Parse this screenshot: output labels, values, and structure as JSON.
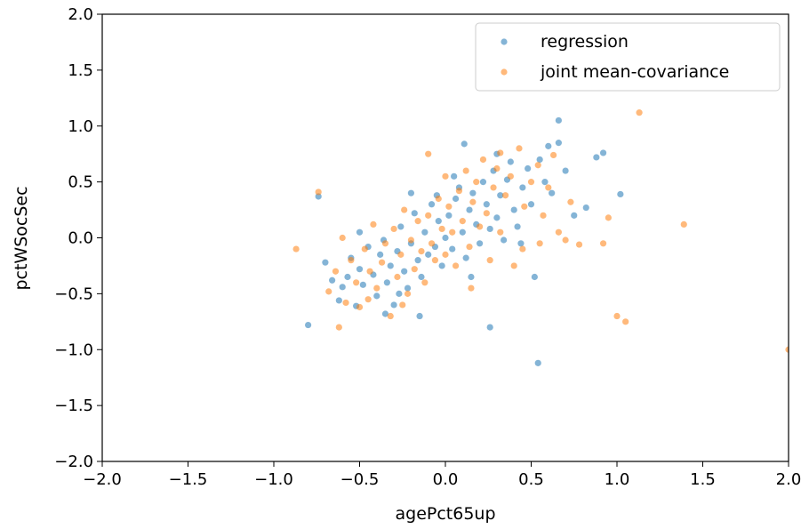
{
  "chart_data": {
    "type": "scatter",
    "xlabel": "agePct65up",
    "ylabel": "pctWSocSec",
    "xlim": [
      -2.0,
      2.0
    ],
    "ylim": [
      -2.0,
      2.0
    ],
    "x_ticks": [
      "−2.0",
      "−1.5",
      "−1.0",
      "−0.5",
      "0.0",
      "0.5",
      "1.0",
      "1.5",
      "2.0"
    ],
    "y_ticks": [
      "−2.0",
      "−1.5",
      "−1.0",
      "−0.5",
      "0.0",
      "0.5",
      "1.0",
      "1.5",
      "2.0"
    ],
    "grid": false,
    "legend_position": "top-right",
    "series": [
      {
        "name": "regression",
        "color": "#1f77b4",
        "points": [
          [
            -0.8,
            -0.78
          ],
          [
            -0.74,
            0.37
          ],
          [
            -0.7,
            -0.22
          ],
          [
            -0.66,
            -0.38
          ],
          [
            -0.62,
            -0.56
          ],
          [
            -0.6,
            -0.44
          ],
          [
            -0.57,
            -0.35
          ],
          [
            -0.55,
            -0.18
          ],
          [
            -0.52,
            -0.61
          ],
          [
            -0.5,
            -0.28
          ],
          [
            -0.48,
            -0.42
          ],
          [
            -0.45,
            -0.08
          ],
          [
            -0.42,
            -0.33
          ],
          [
            -0.4,
            -0.52
          ],
          [
            -0.38,
            -0.15
          ],
          [
            -0.36,
            -0.02
          ],
          [
            -0.34,
            -0.4
          ],
          [
            -0.32,
            -0.25
          ],
          [
            -0.3,
            -0.6
          ],
          [
            -0.28,
            -0.12
          ],
          [
            -0.26,
            0.1
          ],
          [
            -0.24,
            -0.3
          ],
          [
            -0.22,
            -0.45
          ],
          [
            -0.2,
            -0.05
          ],
          [
            -0.18,
            0.22
          ],
          [
            -0.16,
            -0.2
          ],
          [
            -0.14,
            -0.35
          ],
          [
            -0.12,
            0.05
          ],
          [
            -0.1,
            -0.15
          ],
          [
            -0.08,
            0.3
          ],
          [
            -0.06,
            -0.08
          ],
          [
            -0.04,
            0.15
          ],
          [
            -0.02,
            -0.25
          ],
          [
            0.0,
            0.0
          ],
          [
            0.02,
            0.2
          ],
          [
            0.04,
            -0.1
          ],
          [
            0.06,
            0.35
          ],
          [
            0.08,
            0.45
          ],
          [
            0.1,
            0.05
          ],
          [
            0.12,
            -0.18
          ],
          [
            0.14,
            0.25
          ],
          [
            0.16,
            0.4
          ],
          [
            0.18,
            0.12
          ],
          [
            0.2,
            -0.05
          ],
          [
            0.22,
            0.5
          ],
          [
            0.24,
            0.3
          ],
          [
            0.26,
            0.08
          ],
          [
            0.28,
            0.6
          ],
          [
            0.3,
            0.18
          ],
          [
            0.32,
            0.38
          ],
          [
            0.34,
            -0.02
          ],
          [
            0.36,
            0.52
          ],
          [
            0.38,
            0.68
          ],
          [
            0.4,
            0.25
          ],
          [
            0.42,
            0.1
          ],
          [
            0.45,
            0.45
          ],
          [
            0.48,
            0.62
          ],
          [
            0.5,
            0.3
          ],
          [
            0.52,
            -0.35
          ],
          [
            0.55,
            0.7
          ],
          [
            0.58,
            0.5
          ],
          [
            0.6,
            0.82
          ],
          [
            0.62,
            0.4
          ],
          [
            0.66,
            1.05
          ],
          [
            0.66,
            0.85
          ],
          [
            0.7,
            0.6
          ],
          [
            0.75,
            0.2
          ],
          [
            0.82,
            0.27
          ],
          [
            0.88,
            0.72
          ],
          [
            0.92,
            0.76
          ],
          [
            1.02,
            0.39
          ],
          [
            0.54,
            -1.12
          ],
          [
            0.26,
            -0.8
          ],
          [
            0.11,
            0.84
          ],
          [
            -0.15,
            -0.7
          ],
          [
            -0.35,
            -0.68
          ],
          [
            -0.2,
            0.4
          ],
          [
            0.3,
            0.75
          ],
          [
            -0.5,
            0.05
          ],
          [
            -0.05,
            0.38
          ],
          [
            0.15,
            -0.35
          ],
          [
            0.44,
            -0.05
          ],
          [
            -0.27,
            -0.5
          ],
          [
            0.05,
            0.55
          ]
        ]
      },
      {
        "name": "joint mean-covariance",
        "color": "#ff7f0e",
        "points": [
          [
            -0.87,
            -0.1
          ],
          [
            -0.74,
            0.41
          ],
          [
            -0.68,
            -0.48
          ],
          [
            -0.64,
            -0.3
          ],
          [
            -0.62,
            -0.8
          ],
          [
            -0.58,
            -0.58
          ],
          [
            -0.55,
            -0.2
          ],
          [
            -0.52,
            -0.4
          ],
          [
            -0.5,
            -0.62
          ],
          [
            -0.47,
            -0.1
          ],
          [
            -0.44,
            -0.3
          ],
          [
            -0.42,
            0.12
          ],
          [
            -0.4,
            -0.45
          ],
          [
            -0.37,
            -0.22
          ],
          [
            -0.35,
            -0.05
          ],
          [
            -0.32,
            -0.7
          ],
          [
            -0.3,
            0.08
          ],
          [
            -0.28,
            -0.35
          ],
          [
            -0.26,
            -0.15
          ],
          [
            -0.24,
            0.25
          ],
          [
            -0.22,
            -0.5
          ],
          [
            -0.2,
            -0.02
          ],
          [
            -0.18,
            -0.28
          ],
          [
            -0.16,
            0.15
          ],
          [
            -0.14,
            -0.12
          ],
          [
            -0.12,
            -0.4
          ],
          [
            -0.1,
            0.2
          ],
          [
            -0.08,
            -0.05
          ],
          [
            -0.06,
            -0.2
          ],
          [
            -0.04,
            0.35
          ],
          [
            -0.02,
            0.08
          ],
          [
            0.0,
            -0.15
          ],
          [
            0.02,
            0.28
          ],
          [
            0.04,
            0.05
          ],
          [
            0.06,
            -0.25
          ],
          [
            0.08,
            0.42
          ],
          [
            0.1,
            0.15
          ],
          [
            0.12,
            0.6
          ],
          [
            0.14,
            -0.08
          ],
          [
            0.16,
            0.32
          ],
          [
            0.18,
            0.5
          ],
          [
            0.2,
            0.1
          ],
          [
            0.22,
            0.7
          ],
          [
            0.24,
            0.22
          ],
          [
            0.26,
            -0.2
          ],
          [
            0.28,
            0.45
          ],
          [
            0.3,
            0.62
          ],
          [
            0.32,
            0.05
          ],
          [
            0.35,
            0.38
          ],
          [
            0.38,
            0.55
          ],
          [
            0.4,
            -0.25
          ],
          [
            0.43,
            0.8
          ],
          [
            0.46,
            0.28
          ],
          [
            0.5,
            0.5
          ],
          [
            0.54,
            0.65
          ],
          [
            0.57,
            0.2
          ],
          [
            0.6,
            0.45
          ],
          [
            0.63,
            0.74
          ],
          [
            0.66,
            0.05
          ],
          [
            0.7,
            -0.02
          ],
          [
            0.73,
            0.32
          ],
          [
            0.78,
            -0.06
          ],
          [
            0.95,
            0.18
          ],
          [
            1.0,
            -0.7
          ],
          [
            1.05,
            -0.75
          ],
          [
            1.13,
            1.12
          ],
          [
            1.39,
            0.12
          ],
          [
            2.0,
            -1.0
          ],
          [
            0.92,
            -0.05
          ],
          [
            -0.1,
            0.75
          ],
          [
            0.32,
            0.76
          ],
          [
            -0.6,
            0.0
          ],
          [
            -0.25,
            -0.6
          ],
          [
            0.45,
            -0.1
          ],
          [
            0.15,
            -0.45
          ],
          [
            -0.45,
            -0.55
          ],
          [
            0.55,
            -0.05
          ],
          [
            0.0,
            0.55
          ]
        ]
      }
    ]
  }
}
